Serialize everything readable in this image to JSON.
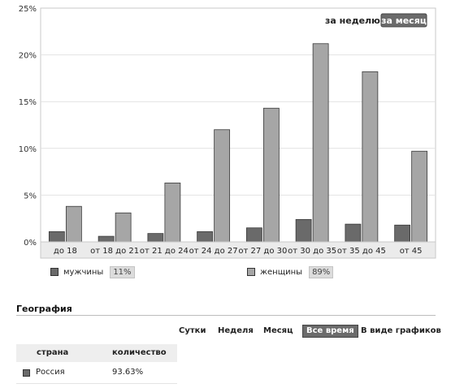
{
  "chart_data": {
    "type": "bar",
    "categories": [
      "до 18",
      "от 18 до 21",
      "от 21 до 24",
      "от 24 до 27",
      "от 27 до 30",
      "от 30 до 35",
      "от 35 до 45",
      "от 45"
    ],
    "series": [
      {
        "name": "мужчины",
        "values": [
          1.1,
          0.6,
          0.9,
          1.1,
          1.5,
          2.4,
          1.9,
          1.8
        ],
        "color": "#6a6a6a"
      },
      {
        "name": "женщины",
        "values": [
          3.8,
          3.1,
          6.3,
          12.0,
          14.3,
          21.2,
          18.2,
          9.7
        ],
        "color": "#a6a6a6"
      }
    ],
    "yticks": [
      "0%",
      "5%",
      "10%",
      "15%",
      "20%",
      "25%"
    ],
    "ylim": [
      0,
      25
    ],
    "grid": true,
    "xlabel": "",
    "ylabel": ""
  },
  "toggle": {
    "week_label": "за неделю",
    "month_label": "за месяц"
  },
  "legend": {
    "men_label": "мужчины",
    "men_pct": "11%",
    "women_label": "женщины",
    "women_pct": "89%"
  },
  "geo": {
    "title": "География",
    "periods": [
      "Сутки",
      "Неделя",
      "Месяц",
      "Все время",
      "В виде графиков"
    ],
    "active_period": "Все время",
    "table": {
      "headers": [
        "страна",
        "количество"
      ],
      "rows": [
        {
          "country": "Россия",
          "value": "93.63%"
        }
      ]
    }
  }
}
